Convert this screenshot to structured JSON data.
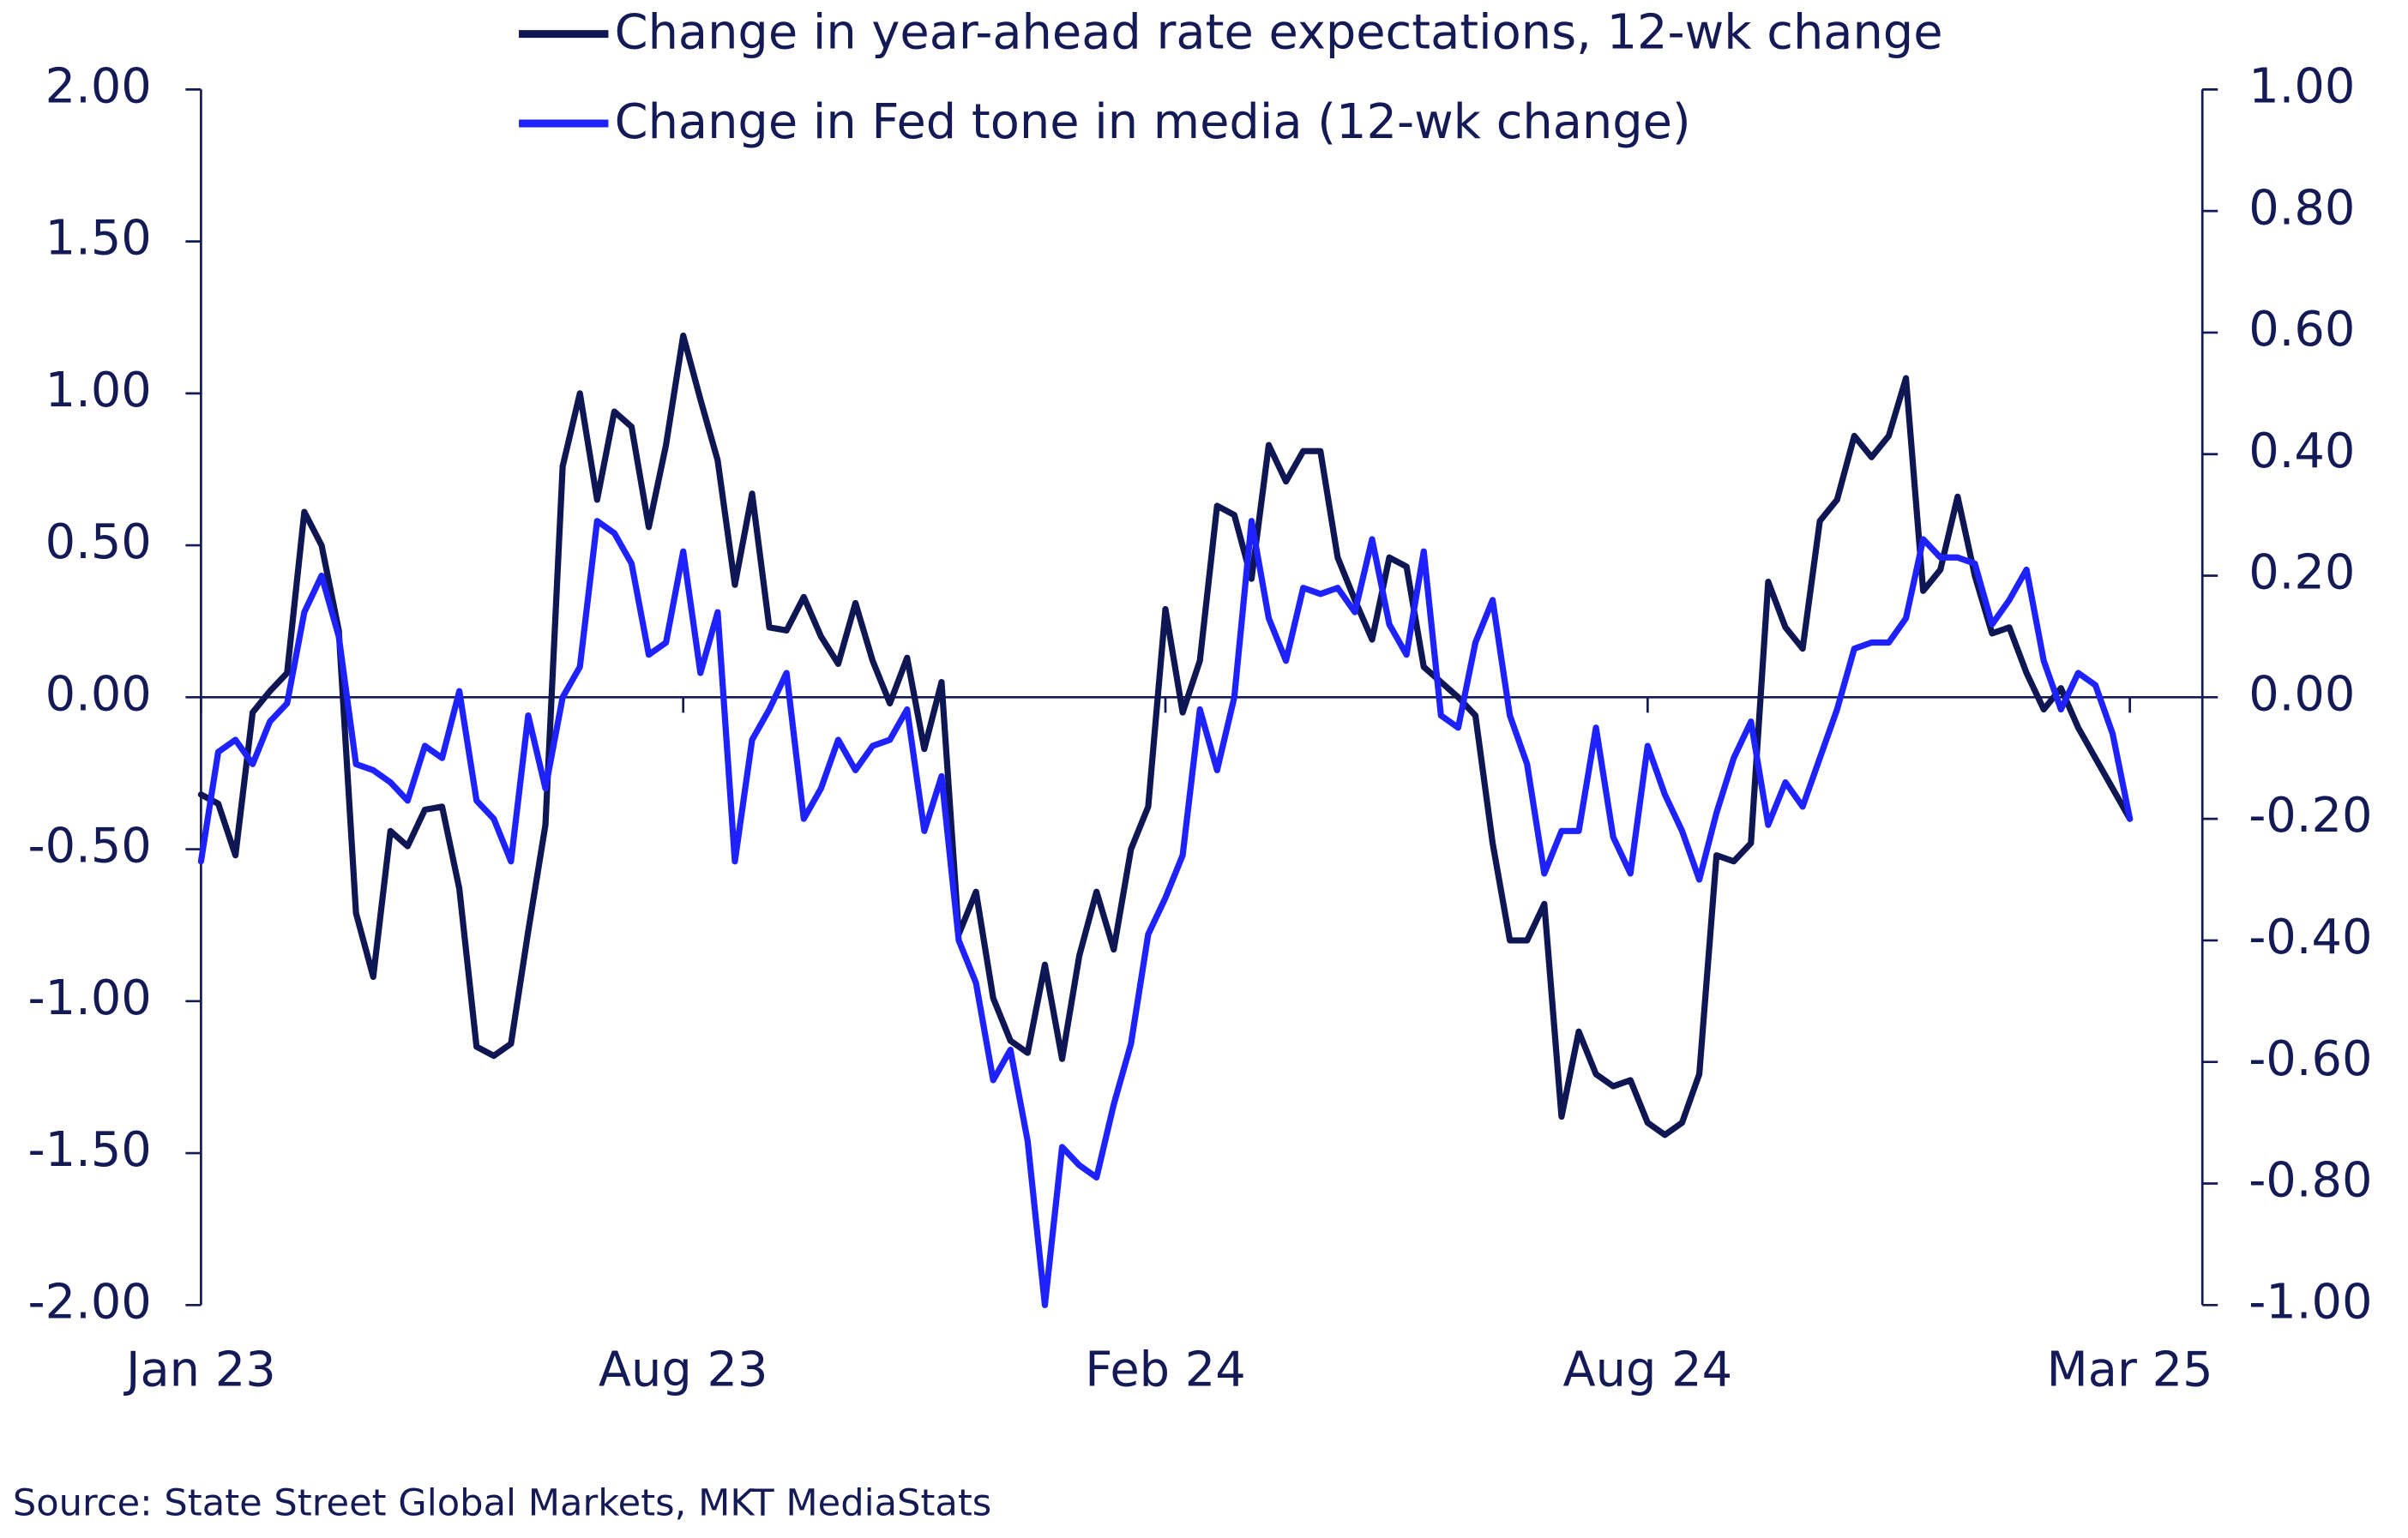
{
  "chart_data": {
    "type": "line",
    "source": "Source: State Street Global Markets, MKT MediaStats",
    "categories": [
      "Jan 23",
      null,
      null,
      null,
      null,
      null,
      null,
      null,
      null,
      null,
      null,
      null,
      null,
      null,
      null,
      null,
      null,
      null,
      null,
      null,
      null,
      null,
      null,
      null,
      null,
      null,
      null,
      null,
      "Aug 23",
      null,
      null,
      null,
      null,
      null,
      null,
      null,
      null,
      null,
      null,
      null,
      null,
      null,
      null,
      null,
      null,
      null,
      null,
      null,
      null,
      null,
      null,
      null,
      null,
      null,
      null,
      null,
      "Feb 24",
      null,
      null,
      null,
      null,
      null,
      null,
      null,
      null,
      null,
      null,
      null,
      null,
      null,
      null,
      null,
      null,
      null,
      null,
      null,
      null,
      null,
      null,
      null,
      null,
      null,
      null,
      null,
      "Aug 24",
      null,
      null,
      null,
      null,
      null,
      null,
      null,
      null,
      null,
      null,
      null,
      null,
      null,
      null,
      null,
      null,
      null,
      null,
      null,
      null,
      null,
      null,
      null,
      null,
      null,
      null,
      null,
      "Mar 25"
    ],
    "series": [
      {
        "name": "Change in year-ahead rate expectations, 12-wk change",
        "color": "#0f1654",
        "values": [
          -0.32,
          -0.35,
          -0.52,
          -0.05,
          0.02,
          0.08,
          0.61,
          0.5,
          0.22,
          -0.71,
          -0.92,
          -0.44,
          -0.49,
          -0.37,
          -0.36,
          -0.63,
          -1.15,
          -1.18,
          -1.14,
          -0.77,
          -0.42,
          0.76,
          1.0,
          0.65,
          0.94,
          0.89,
          0.56,
          0.83,
          1.19,
          0.98,
          0.78,
          0.37,
          0.67,
          0.23,
          0.22,
          0.33,
          0.2,
          0.11,
          0.31,
          0.12,
          -0.02,
          0.13,
          -0.17,
          0.05,
          -0.78,
          -0.64,
          -0.99,
          -1.13,
          -1.17,
          -0.88,
          -1.19,
          -0.85,
          -0.64,
          -0.83,
          -0.5,
          -0.36,
          0.29,
          -0.05,
          0.12,
          0.63,
          0.6,
          0.39,
          0.83,
          0.71,
          0.81,
          0.81,
          0.46,
          0.32,
          0.19,
          0.46,
          0.43,
          0.1,
          0.05,
          0.0,
          -0.06,
          -0.48,
          -0.8,
          -0.8,
          -0.68,
          -1.38,
          -1.1,
          -1.24,
          -1.28,
          -1.26,
          -1.4,
          -1.44,
          -1.4,
          -1.24,
          -0.52,
          -0.54,
          -0.48,
          0.38,
          0.23,
          0.16,
          0.58,
          0.65,
          0.86,
          0.79,
          0.86,
          1.05,
          0.35,
          0.42,
          0.66,
          0.4,
          0.21,
          0.23,
          0.08,
          -0.04,
          0.03,
          -0.1,
          -0.2,
          -0.3,
          -0.4
        ]
      },
      {
        "name": "Change in Fed tone in media (12-wk change)",
        "color": "#1e22ff",
        "axis": "y2",
        "values": [
          -0.27,
          -0.09,
          -0.07,
          -0.11,
          -0.04,
          -0.01,
          0.14,
          0.2,
          0.1,
          -0.11,
          -0.12,
          -0.14,
          -0.17,
          -0.08,
          -0.1,
          0.01,
          -0.17,
          -0.2,
          -0.27,
          -0.03,
          -0.15,
          0.0,
          0.05,
          0.29,
          0.27,
          0.22,
          0.07,
          0.09,
          0.24,
          0.04,
          0.14,
          -0.27,
          -0.07,
          -0.02,
          0.04,
          -0.2,
          -0.15,
          -0.07,
          -0.12,
          -0.08,
          -0.07,
          -0.02,
          -0.22,
          -0.13,
          -0.4,
          -0.47,
          -0.63,
          -0.58,
          -0.73,
          -1.0,
          -0.74,
          -0.77,
          -0.79,
          -0.67,
          -0.57,
          -0.39,
          -0.33,
          -0.26,
          -0.02,
          -0.12,
          0.0,
          0.29,
          0.13,
          0.06,
          0.18,
          0.17,
          0.18,
          0.14,
          0.26,
          0.12,
          0.07,
          0.24,
          -0.03,
          -0.05,
          0.09,
          0.16,
          -0.03,
          -0.11,
          -0.29,
          -0.22,
          -0.22,
          -0.05,
          -0.23,
          -0.29,
          -0.08,
          -0.16,
          -0.22,
          -0.3,
          -0.19,
          -0.1,
          -0.04,
          -0.21,
          -0.14,
          -0.18,
          -0.1,
          -0.02,
          0.08,
          0.09,
          0.09,
          0.13,
          0.26,
          0.23,
          0.23,
          0.22,
          0.12,
          0.16,
          0.21,
          0.06,
          -0.02,
          0.04,
          0.02,
          -0.06,
          -0.2
        ]
      }
    ],
    "ylim": [
      -2,
      2
    ],
    "yticks": [
      {
        "value": -2,
        "label": "-2.00"
      },
      {
        "value": -1.5,
        "label": "-1.50"
      },
      {
        "value": -1,
        "label": "-1.00"
      },
      {
        "value": -0.5,
        "label": "-0.50"
      },
      {
        "value": 0,
        "label": "0.00"
      },
      {
        "value": 0.5,
        "label": "0.50"
      },
      {
        "value": 1,
        "label": "1.00"
      },
      {
        "value": 1.5,
        "label": "1.50"
      },
      {
        "value": 2,
        "label": "2.00"
      }
    ],
    "y2lim": [
      -1,
      1
    ],
    "y2ticks": [
      {
        "value": -1,
        "label": "-1.00"
      },
      {
        "value": -0.8,
        "label": "-0.80"
      },
      {
        "value": -0.6,
        "label": "-0.60"
      },
      {
        "value": -0.4,
        "label": "-0.40"
      },
      {
        "value": -0.2,
        "label": "-0.20"
      },
      {
        "value": 0,
        "label": "0.00"
      },
      {
        "value": 0.2,
        "label": "0.20"
      },
      {
        "value": 0.4,
        "label": "0.40"
      },
      {
        "value": 0.6,
        "label": "0.60"
      },
      {
        "value": 0.8,
        "label": "0.80"
      },
      {
        "value": 1,
        "label": "1.00"
      }
    ],
    "legend": "top"
  }
}
